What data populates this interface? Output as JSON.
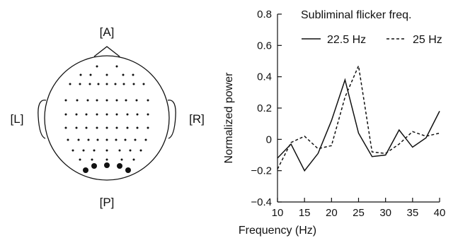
{
  "head_map": {
    "label_anterior": "[A]",
    "label_posterior": "[P]",
    "label_left": "[L]",
    "label_right": "[R]"
  },
  "chart_data": {
    "type": "line",
    "title": "Subliminal flicker freq.",
    "xlabel": "Frequency (Hz)",
    "ylabel": "Normalized power",
    "xlim": [
      10,
      40
    ],
    "ylim": [
      -0.4,
      0.8
    ],
    "xticks": [
      10,
      15,
      20,
      25,
      30,
      35,
      40
    ],
    "yticks": [
      -0.4,
      -0.2,
      0,
      0.2,
      0.4,
      0.6,
      0.8
    ],
    "ytick_labels": [
      "−0.4",
      "−0.2",
      "0",
      "0.2",
      "0.4",
      "0.6",
      "0.8"
    ],
    "legend": "top",
    "x": [
      10,
      12.5,
      15,
      17.5,
      20,
      22.5,
      25,
      27.5,
      30,
      32.5,
      35,
      37.5,
      40
    ],
    "series": [
      {
        "name": "22.5 Hz",
        "style": "solid",
        "values": [
          -0.12,
          -0.03,
          -0.2,
          -0.09,
          0.12,
          0.38,
          0.04,
          -0.11,
          -0.1,
          0.06,
          -0.05,
          0.01,
          0.18
        ]
      },
      {
        "name": "25 Hz",
        "style": "dashed",
        "values": [
          -0.19,
          -0.02,
          0.02,
          -0.06,
          -0.04,
          0.27,
          0.47,
          -0.08,
          -0.09,
          -0.03,
          0.05,
          0.02,
          0.04
        ]
      }
    ]
  }
}
